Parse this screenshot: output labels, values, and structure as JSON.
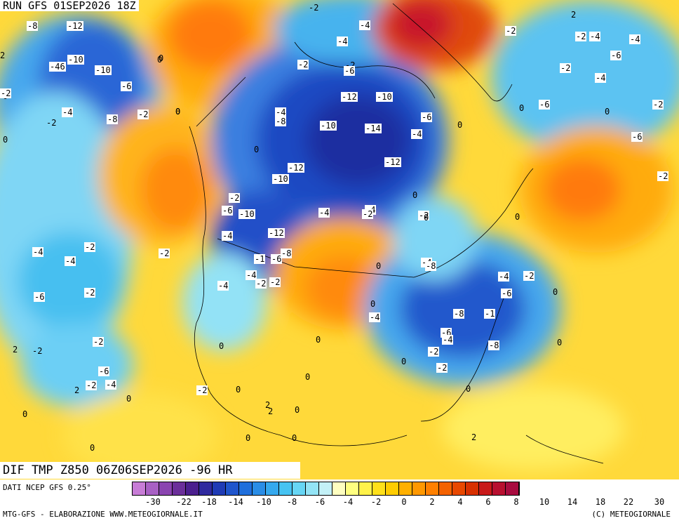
{
  "header": {
    "run_title": "RUN GFS 01SEP2026 18Z",
    "product_title": "DIF TMP Z850 06Z06SEP2026 -96 HR"
  },
  "footer": {
    "data_source": "DATI NCEP GFS 0.25°",
    "credit_left": "MTG-GFS - ELABORAZIONE WWW.METEOGIORNALE.IT",
    "credit_right": "(C) METEOGIORNALE"
  },
  "colors": {
    "palette": [
      "#c77cd6",
      "#a860c4",
      "#8a44b0",
      "#6b2f9a",
      "#4b1f8e",
      "#2f2a9e",
      "#1f3bb5",
      "#1f55cc",
      "#1f6fdc",
      "#2a8de6",
      "#35a9ee",
      "#46c3f2",
      "#67d6f5",
      "#93e4f6",
      "#c3f1f7",
      "#ffffc0",
      "#ffff80",
      "#fff24a",
      "#ffe01a",
      "#ffcc00",
      "#ffb000",
      "#ff9800",
      "#ff8000",
      "#f46200",
      "#e84800",
      "#d83000",
      "#c81a1a",
      "#b81030",
      "#a80c40"
    ],
    "map_base": "#ffd93a"
  },
  "colorbar_ticks": [
    "-30",
    "-22",
    "-18",
    "-14",
    "-10",
    "-8",
    "-6",
    "-4",
    "-2",
    "0",
    "2",
    "4",
    "6",
    "8",
    "10",
    "14",
    "18",
    "22",
    "30"
  ],
  "map_labels": [
    {
      "t": "-8",
      "box": true
    },
    {
      "t": "-12",
      "box": true
    },
    {
      "t": "-10",
      "box": true
    },
    {
      "t": "-46",
      "box": true
    },
    {
      "t": "-10",
      "box": true
    },
    {
      "t": "-6",
      "box": true
    },
    {
      "t": "-4",
      "box": true
    },
    {
      "t": "-2",
      "box": false
    },
    {
      "t": "-8",
      "box": true
    },
    {
      "t": "-2",
      "box": true
    },
    {
      "t": "0",
      "box": false
    },
    {
      "t": "0",
      "box": false
    },
    {
      "t": "2",
      "box": false
    },
    {
      "t": "0",
      "box": false
    },
    {
      "t": "-2",
      "box": false
    },
    {
      "t": "-4",
      "box": true
    },
    {
      "t": "-2",
      "box": true
    },
    {
      "t": "-2",
      "box": false
    },
    {
      "t": "-6",
      "box": true
    },
    {
      "t": "-12",
      "box": true
    },
    {
      "t": "-10",
      "box": true
    },
    {
      "t": "-14",
      "box": true
    },
    {
      "t": "-12",
      "box": true
    },
    {
      "t": "-10",
      "box": true
    },
    {
      "t": "-12",
      "box": true
    },
    {
      "t": "-10",
      "box": true
    },
    {
      "t": "-4",
      "box": true
    },
    {
      "t": "-8",
      "box": true
    },
    {
      "t": "-4",
      "box": true
    },
    {
      "t": "-2",
      "box": true
    },
    {
      "t": "-6",
      "box": true
    },
    {
      "t": "-10",
      "box": true
    },
    {
      "t": "-4",
      "box": true
    },
    {
      "t": "-12",
      "box": true
    },
    {
      "t": "-8",
      "box": true
    },
    {
      "t": "-6",
      "box": true
    },
    {
      "t": "-1",
      "box": true
    },
    {
      "t": "-4",
      "box": true
    },
    {
      "t": "-4",
      "box": true
    },
    {
      "t": "-2",
      "box": true
    },
    {
      "t": "-2",
      "box": true
    },
    {
      "t": "-4",
      "box": true
    },
    {
      "t": "-6",
      "box": true
    },
    {
      "t": "-2",
      "box": true
    },
    {
      "t": "-4",
      "box": true
    },
    {
      "t": "-6",
      "box": true
    },
    {
      "t": "-4",
      "box": true
    },
    {
      "t": "-2",
      "box": true
    },
    {
      "t": "-6",
      "box": true
    },
    {
      "t": "-2",
      "box": true
    },
    {
      "t": "-4",
      "box": true
    },
    {
      "t": "-6",
      "box": true
    },
    {
      "t": "-4",
      "box": true
    },
    {
      "t": "-2",
      "box": true
    },
    {
      "t": "-8",
      "box": true
    },
    {
      "t": "-1",
      "box": true
    },
    {
      "t": "-8",
      "box": true
    },
    {
      "t": "-6",
      "box": true
    },
    {
      "t": "-4",
      "box": true
    },
    {
      "t": "-2",
      "box": true
    },
    {
      "t": "-8",
      "box": true
    },
    {
      "t": "-2",
      "box": true
    },
    {
      "t": "-4",
      "box": true
    },
    {
      "t": "-2",
      "box": true
    },
    {
      "t": "-6",
      "box": true
    },
    {
      "t": "-4",
      "box": true
    },
    {
      "t": "-2",
      "box": true
    },
    {
      "t": "-2",
      "box": true
    },
    {
      "t": "-4",
      "box": true
    },
    {
      "t": "-2",
      "box": true
    },
    {
      "t": "-6",
      "box": true
    },
    {
      "t": "-4",
      "box": true
    },
    {
      "t": "-2",
      "box": true
    },
    {
      "t": "-6",
      "box": true
    },
    {
      "t": "-2",
      "box": true
    },
    {
      "t": "-4",
      "box": true
    },
    {
      "t": "-2",
      "box": true
    },
    {
      "t": "-4",
      "box": true
    },
    {
      "t": "-2",
      "box": true
    },
    {
      "t": "-2",
      "box": true
    },
    {
      "t": "-4",
      "box": true
    },
    {
      "t": "-2",
      "box": true
    },
    {
      "t": "-2",
      "box": true
    },
    {
      "t": "0",
      "box": false
    },
    {
      "t": "0",
      "box": false
    },
    {
      "t": "0",
      "box": false
    },
    {
      "t": "0",
      "box": false
    },
    {
      "t": "0",
      "box": false
    },
    {
      "t": "0",
      "box": false
    },
    {
      "t": "0",
      "box": false
    },
    {
      "t": "0",
      "box": false
    },
    {
      "t": "0",
      "box": false
    },
    {
      "t": "0",
      "box": false
    },
    {
      "t": "0",
      "box": false
    },
    {
      "t": "0",
      "box": false
    },
    {
      "t": "0",
      "box": false
    },
    {
      "t": "0",
      "box": false
    },
    {
      "t": "0",
      "box": false
    },
    {
      "t": "0",
      "box": false
    },
    {
      "t": "0",
      "box": false
    },
    {
      "t": "0",
      "box": false
    },
    {
      "t": "0",
      "box": false
    },
    {
      "t": "0",
      "box": false
    },
    {
      "t": "0",
      "box": false
    },
    {
      "t": "0",
      "box": false
    },
    {
      "t": "0",
      "box": false
    },
    {
      "t": "0",
      "box": false
    },
    {
      "t": "0",
      "box": false
    },
    {
      "t": "0",
      "box": false
    },
    {
      "t": "2",
      "box": false
    },
    {
      "t": "2",
      "box": false
    },
    {
      "t": "2",
      "box": false
    },
    {
      "t": "2",
      "box": false
    },
    {
      "t": "2",
      "box": false
    },
    {
      "t": "-2",
      "box": false
    },
    {
      "t": "2",
      "box": false
    }
  ]
}
